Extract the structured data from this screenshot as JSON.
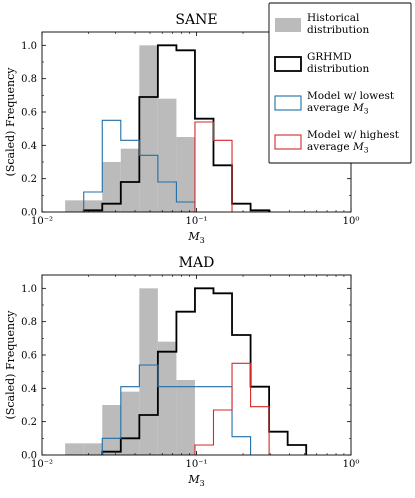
{
  "legend": {
    "items": [
      {
        "label": [
          "Historical",
          "distribution"
        ],
        "style": "fill",
        "color": "#bbbbbb"
      },
      {
        "label": [
          "GRHMD",
          "distribution"
        ],
        "style": "step",
        "color": "#000000"
      },
      {
        "label": [
          "Model w/ lowest",
          "average M3"
        ],
        "style": "step",
        "color": "#1f6fa8"
      },
      {
        "label": [
          "Model w/ highest",
          "average M3"
        ],
        "style": "step",
        "color": "#d62728"
      }
    ]
  },
  "chart_data": [
    {
      "type": "bar",
      "title": "SANE",
      "xlabel": "M3",
      "ylabel": "(Scaled) Frequency",
      "xscale": "log",
      "xlim": [
        0.01,
        1
      ],
      "ylim": [
        0,
        1.08
      ],
      "xticks": [
        "10⁻²",
        "10⁻¹",
        "10⁰"
      ],
      "yticks": [
        "0.0",
        "0.2",
        "0.4",
        "0.6",
        "0.8",
        "1.0"
      ],
      "bin_edges": [
        0.01412,
        0.01862,
        0.02455,
        0.03236,
        0.04266,
        0.05623,
        0.07413,
        0.09772,
        0.1288,
        0.1698,
        0.2239,
        0.2951,
        0.389,
        0.5129,
        0.6761
      ],
      "series": [
        {
          "name": "Historical distribution",
          "kind": "fill",
          "color": "#bbbbbb",
          "values": [
            0.07,
            0.07,
            0.3,
            0.38,
            1.0,
            0.68,
            0.45,
            0,
            0,
            0,
            0,
            0,
            0,
            0
          ]
        },
        {
          "name": "GRHMD distribution",
          "kind": "step",
          "color": "#000000",
          "values": [
            0,
            0.01,
            0.05,
            0.18,
            0.69,
            1.0,
            0.97,
            0.56,
            0.28,
            0.05,
            0.01,
            0,
            0,
            0
          ]
        },
        {
          "name": "Model w/ lowest average M3",
          "kind": "step",
          "color": "#1f6fa8",
          "values": [
            0,
            0.12,
            0.55,
            0.43,
            0.34,
            0.18,
            0.06,
            0,
            0,
            0,
            0,
            0,
            0,
            0
          ]
        },
        {
          "name": "Model w/ highest average M3",
          "kind": "step",
          "color": "#d62728",
          "values": [
            0,
            0,
            0,
            0,
            0,
            0,
            0,
            0.54,
            0.43,
            0,
            0,
            0,
            0,
            0
          ]
        }
      ]
    },
    {
      "type": "bar",
      "title": "MAD",
      "xlabel": "M3",
      "ylabel": "(Scaled) Frequency",
      "xscale": "log",
      "xlim": [
        0.01,
        1
      ],
      "ylim": [
        0,
        1.08
      ],
      "xticks": [
        "10⁻²",
        "10⁻¹",
        "10⁰"
      ],
      "yticks": [
        "0.0",
        "0.2",
        "0.4",
        "0.6",
        "0.8",
        "1.0"
      ],
      "bin_edges": [
        0.01412,
        0.01862,
        0.02455,
        0.03236,
        0.04266,
        0.05623,
        0.07413,
        0.09772,
        0.1288,
        0.1698,
        0.2239,
        0.2951,
        0.389,
        0.5129,
        0.6761
      ],
      "series": [
        {
          "name": "Historical distribution",
          "kind": "fill",
          "color": "#bbbbbb",
          "values": [
            0.07,
            0.07,
            0.3,
            0.38,
            1.0,
            0.68,
            0.45,
            0,
            0,
            0,
            0,
            0,
            0,
            0
          ]
        },
        {
          "name": "GRHMD distribution",
          "kind": "step",
          "color": "#000000",
          "values": [
            0,
            0,
            0.02,
            0.1,
            0.24,
            0.62,
            0.86,
            1.0,
            0.97,
            0.72,
            0.41,
            0.14,
            0.06,
            0
          ]
        },
        {
          "name": "Model w/ lowest average M3",
          "kind": "step",
          "color": "#1f6fa8",
          "values": [
            0,
            0,
            0.1,
            0.41,
            0.54,
            0.41,
            0.41,
            0.41,
            0.41,
            0.11,
            0,
            0,
            0,
            0
          ]
        },
        {
          "name": "Model w/ highest average M3",
          "kind": "step",
          "color": "#d62728",
          "values": [
            0,
            0,
            0,
            0,
            0,
            0,
            0,
            0.06,
            0.27,
            0.55,
            0.29,
            0,
            0,
            0
          ]
        }
      ]
    }
  ]
}
